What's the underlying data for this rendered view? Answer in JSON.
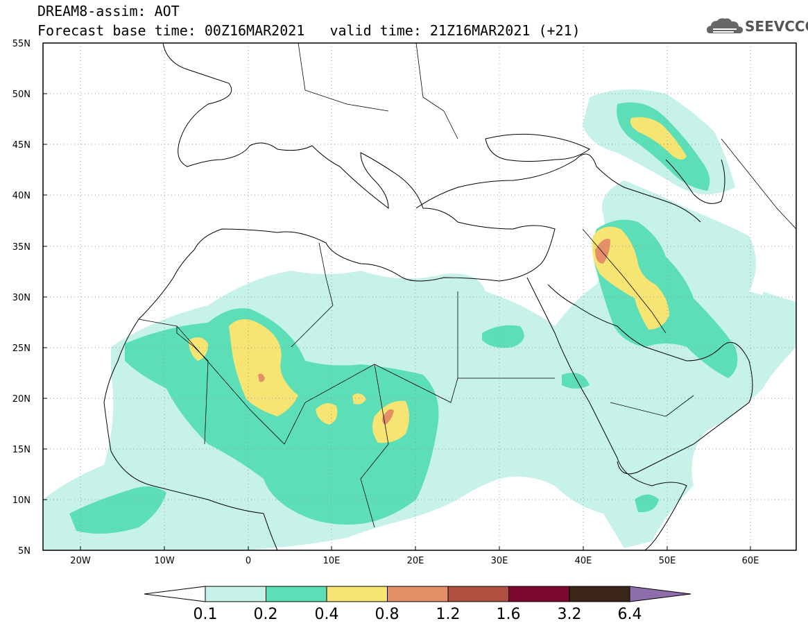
{
  "header": {
    "title_line1": "DREAM8-assim: AOT",
    "base_time_label": "Forecast base time: 00Z16MAR2021",
    "valid_time_label": "valid time: 21Z16MAR2021 (+21)"
  },
  "logo": {
    "text": "SEEVCCC",
    "icon": "cloud-logo-icon"
  },
  "map": {
    "lon_range": [
      -25,
      65
    ],
    "lat_range": [
      5,
      55
    ],
    "lat_labels": [
      "55N",
      "50N",
      "45N",
      "40N",
      "35N",
      "30N",
      "25N",
      "20N",
      "15N",
      "10N",
      "5N"
    ],
    "lon_labels": [
      "20W",
      "10W",
      "0",
      "10E",
      "20E",
      "30E",
      "40E",
      "50E",
      "60E"
    ],
    "grid": "dotted"
  },
  "colorbar": {
    "labels": [
      "0.1",
      "0.2",
      "0.4",
      "0.8",
      "1.2",
      "1.6",
      "3.2",
      "6.4"
    ],
    "colors": [
      "#ffffff",
      "#c6f2ea",
      "#5cdfb7",
      "#f6e473",
      "#e58f69",
      "#b14e3f",
      "#7a0830",
      "#3b2418",
      "#8e6eaa"
    ]
  }
}
